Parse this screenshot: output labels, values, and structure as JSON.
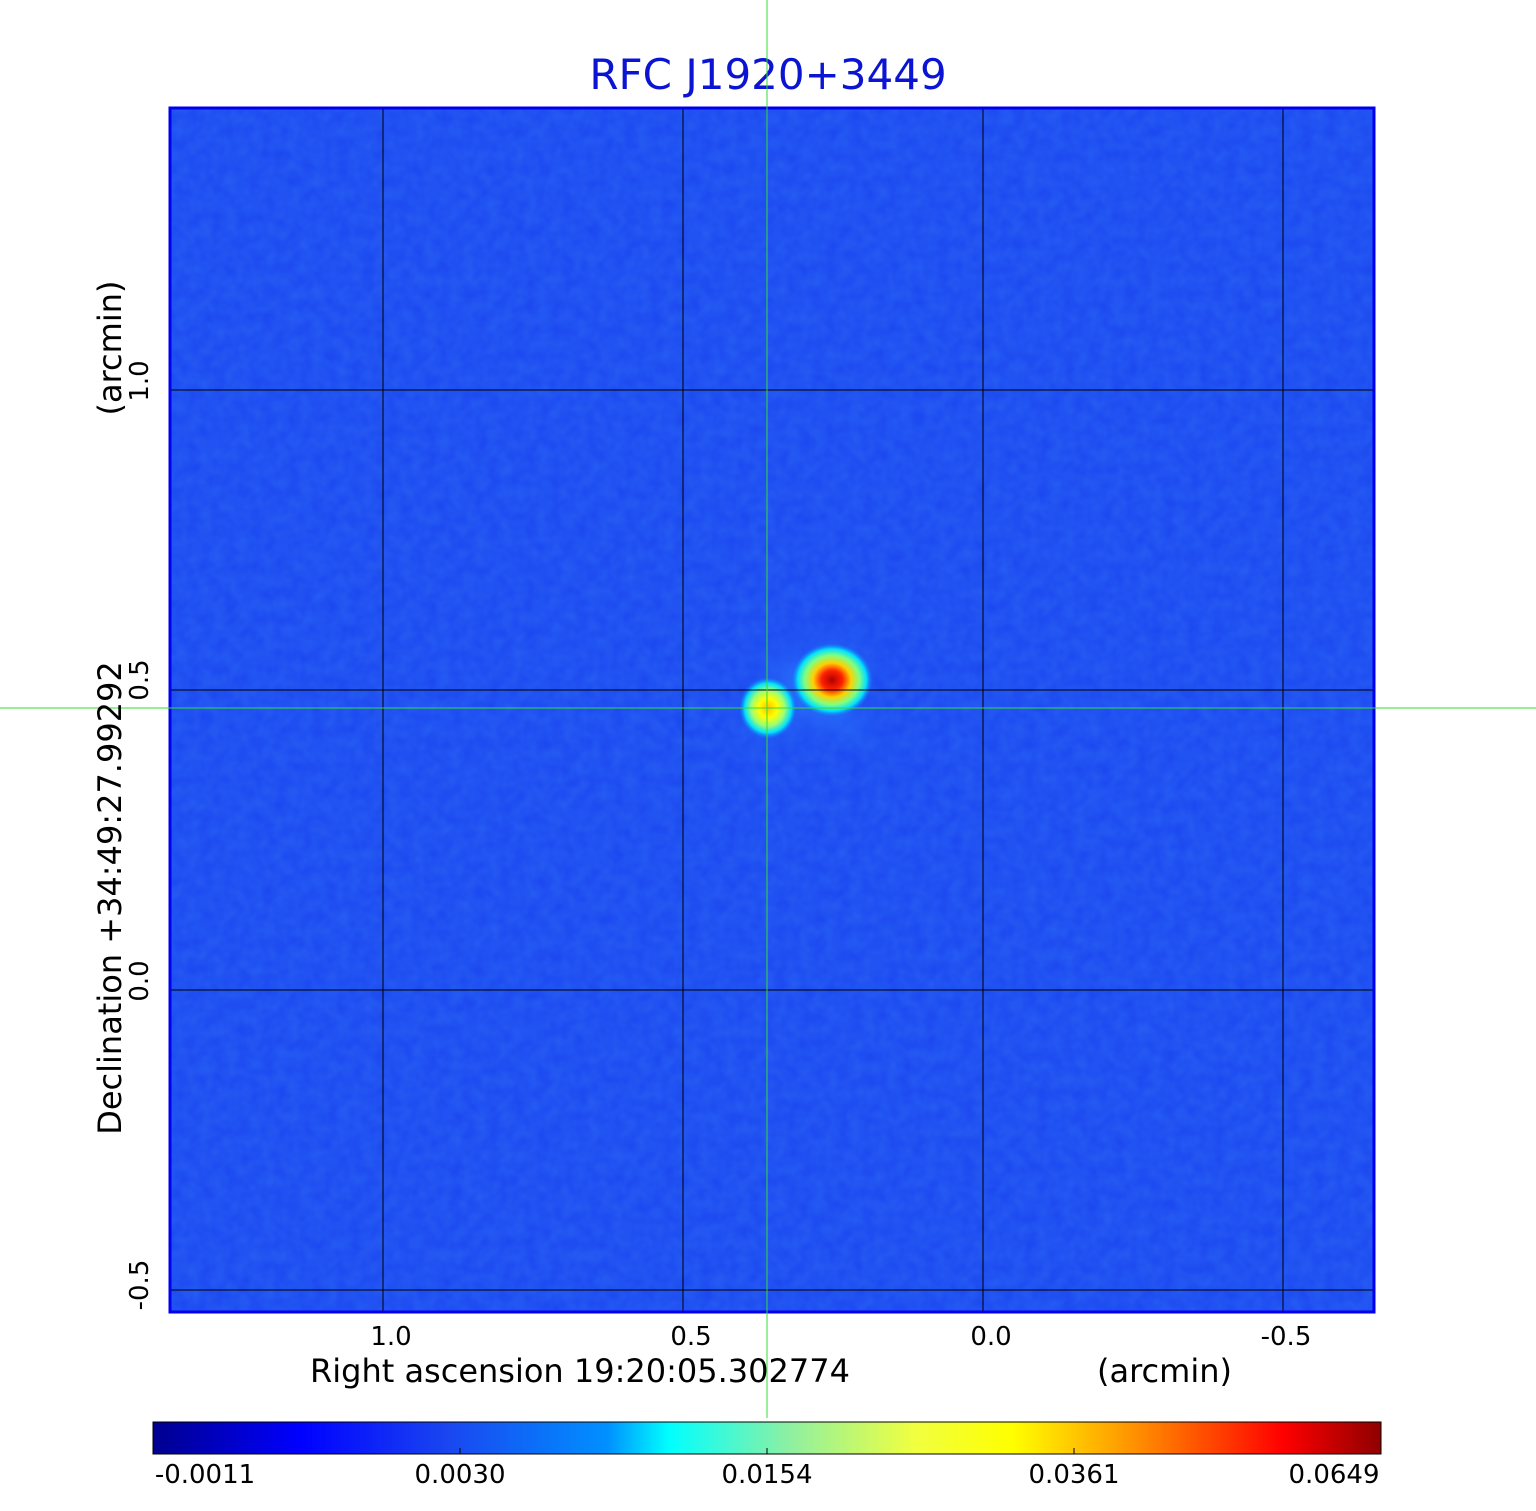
{
  "title": "RFC J1920+3449",
  "x_axis": {
    "label": "Right ascension  19:20:05.302774",
    "unit": "(arcmin)",
    "ticks": [
      "1.0",
      "0.5",
      "0.0",
      "-0.5"
    ]
  },
  "y_axis": {
    "label": "Declination  +34:49:27.99292",
    "unit": "(arcmin)",
    "ticks": [
      "1.0",
      "0.5",
      "0.0",
      "-0.5"
    ]
  },
  "colorbar": {
    "colormap": "jet",
    "ticks": [
      "-0.0011",
      "0.0030",
      "0.0154",
      "0.0361",
      "0.0649"
    ]
  },
  "image": {
    "background_color": "#1a46f0",
    "grid_color": "#000000",
    "crosshair_color": "#33dd33",
    "sources": [
      {
        "name": "primary",
        "ra_offset_arcmin": 0.24,
        "dec_offset_arcmin": 0.5,
        "peak": 0.0649
      },
      {
        "name": "secondary",
        "ra_offset_arcmin": 0.36,
        "dec_offset_arcmin": 0.47,
        "peak": 0.036
      }
    ]
  }
}
